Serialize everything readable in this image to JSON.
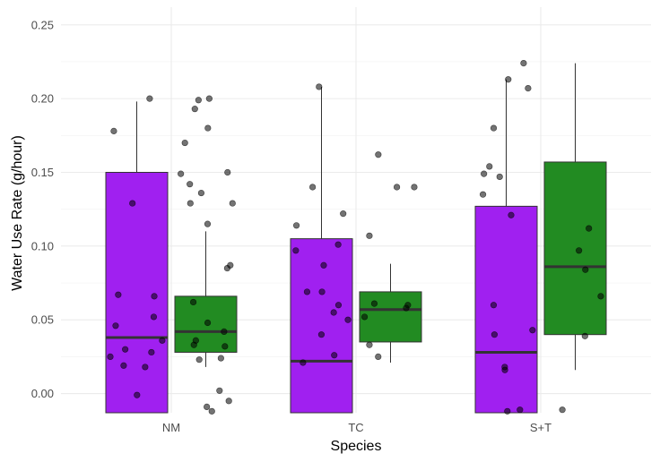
{
  "chart_data": {
    "type": "boxplot",
    "xlabel": "Species",
    "ylabel": "Water Use Rate (g/hour)",
    "categories": [
      "NM",
      "TC",
      "S+T"
    ],
    "ylim": [
      -0.013,
      0.262
    ],
    "yticks": [
      0.0,
      0.05,
      0.1,
      0.15,
      0.2,
      0.25
    ],
    "ytick_labels": [
      "0.00",
      "0.05",
      "0.10",
      "0.15",
      "0.20",
      "0.25"
    ],
    "grid": true,
    "legend": "none",
    "groups": [
      {
        "fill": "#a020f0",
        "offset": -1
      },
      {
        "fill": "#228b22",
        "offset": 1
      }
    ],
    "boxes": [
      {
        "category": "NM",
        "group": 0,
        "min": -0.013,
        "q1": -0.013,
        "median": 0.038,
        "q3": 0.15,
        "max": 0.198,
        "points": [
          0.2,
          0.178,
          0.129,
          0.066,
          0.067,
          0.052,
          0.046,
          0.036,
          0.03,
          0.028,
          0.025,
          0.019,
          0.018,
          -0.001
        ]
      },
      {
        "category": "NM",
        "group": 1,
        "min": 0.018,
        "q1": 0.028,
        "median": 0.042,
        "q3": 0.066,
        "max": 0.11,
        "points": [
          0.2,
          0.199,
          0.193,
          0.18,
          0.17,
          0.149,
          0.15,
          0.142,
          0.136,
          0.129,
          0.129,
          0.115,
          0.087,
          0.085,
          0.062,
          0.048,
          0.042,
          0.036,
          0.032,
          0.033,
          0.024,
          0.023,
          0.002,
          -0.005,
          -0.009,
          -0.012
        ]
      },
      {
        "category": "TC",
        "group": 0,
        "min": -0.013,
        "q1": -0.013,
        "median": 0.022,
        "q3": 0.105,
        "max": 0.208,
        "points": [
          0.208,
          0.14,
          0.122,
          0.114,
          0.101,
          0.097,
          0.087,
          0.069,
          0.069,
          0.06,
          0.055,
          0.05,
          0.04,
          0.026,
          0.021
        ]
      },
      {
        "category": "TC",
        "group": 1,
        "min": 0.021,
        "q1": 0.035,
        "median": 0.057,
        "q3": 0.069,
        "max": 0.088,
        "points": [
          0.162,
          0.14,
          0.14,
          0.107,
          0.061,
          0.06,
          0.058,
          0.052,
          0.033,
          0.025
        ]
      },
      {
        "category": "S+T",
        "group": 0,
        "min": -0.013,
        "q1": -0.013,
        "median": 0.028,
        "q3": 0.127,
        "max": 0.213,
        "points": [
          0.224,
          0.213,
          0.207,
          0.18,
          0.154,
          0.149,
          0.147,
          0.135,
          0.121,
          0.06,
          0.043,
          0.04,
          0.018,
          0.016,
          -0.011,
          -0.012
        ]
      },
      {
        "category": "S+T",
        "group": 1,
        "min": 0.016,
        "q1": 0.04,
        "median": 0.086,
        "q3": 0.157,
        "max": 0.224,
        "points": [
          0.112,
          0.097,
          0.084,
          0.066,
          0.039,
          -0.011
        ]
      }
    ]
  }
}
